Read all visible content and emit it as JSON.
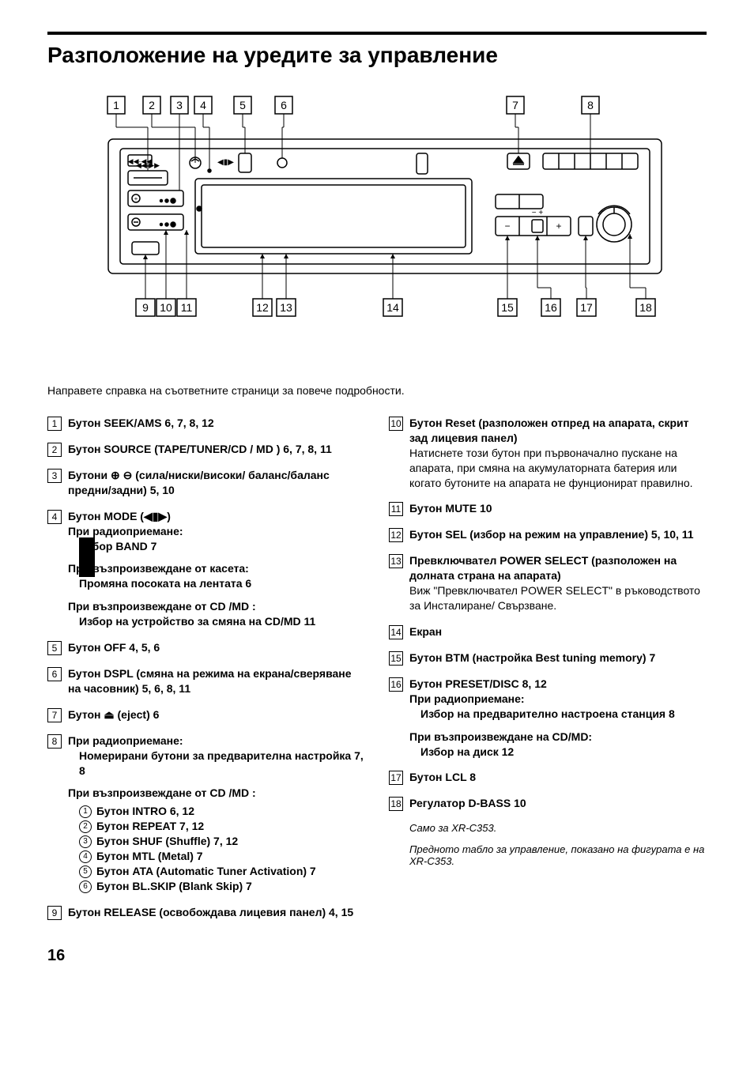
{
  "title": "Разположение на уредите за управление",
  "intro": "Направете справка на съответните страници за повече подробности.",
  "pageNumber": "16",
  "diagram": {
    "topLabels": [
      "1",
      "2",
      "3",
      "4",
      "5",
      "6",
      "7",
      "8"
    ],
    "bottomLabels": [
      "9",
      "10",
      "11",
      "12",
      "13",
      "14",
      "15",
      "16",
      "17",
      "18"
    ]
  },
  "leftItems": [
    {
      "n": "1",
      "lines": [
        {
          "main": "Бутон SEEK/AMS  6, 7, 8, 12"
        }
      ]
    },
    {
      "n": "2",
      "lines": [
        {
          "main": "Бутон SOURCE (TAPE/TUNER/CD  / MD  )  6, 7, 8, 11"
        }
      ]
    },
    {
      "n": "3",
      "lines": [
        {
          "main": "Бутони ⊕ ⊖ (сила/ниски/високи/ баланс/баланс предни/задни)  5, 10"
        }
      ]
    },
    {
      "n": "4",
      "lines": [
        {
          "main": "Бутон MODE (◀▮▶)"
        },
        {
          "main": "При радиоприемане:"
        },
        {
          "desc": "Избор BAND  7"
        },
        {
          "context": "При възпроизвеждане от касета:"
        },
        {
          "desc": "Промяна посоката на лентата  6"
        },
        {
          "context": "При възпроизвеждане от CD  /MD  :"
        },
        {
          "desc": "Избор на устройство за смяна на CD/MD  11"
        }
      ]
    },
    {
      "n": "5",
      "lines": [
        {
          "main": "Бутон OFF  4, 5, 6"
        }
      ]
    },
    {
      "n": "6",
      "lines": [
        {
          "main": "Бутон DSPL (смяна на режима на екрана/сверяване на часовник)  5, 6, 8, 11"
        }
      ]
    },
    {
      "n": "7",
      "lines": [
        {
          "main": "Бутон ⏏ (eject)  6"
        }
      ]
    },
    {
      "n": "8",
      "lines": [
        {
          "main": "При радиоприемане:"
        },
        {
          "desc": "Номерирани бутони за предварителна настройка  7, 8"
        },
        {
          "context": "При възпроизвеждане от CD  /MD  :"
        }
      ],
      "subitems": [
        {
          "c": "1",
          "t": "Бутон INTRO  6, 12"
        },
        {
          "c": "2",
          "t": "Бутон REPEAT  7, 12"
        },
        {
          "c": "3",
          "t": "Бутон SHUF (Shuffle)    7, 12"
        },
        {
          "c": "4",
          "t": "Бутон MTL (Metal)  7"
        },
        {
          "c": "5",
          "t": "Бутон ATA (Automatic Tuner Activation)  7"
        },
        {
          "c": "6",
          "t": "Бутон BL.SKIP (Blank Skip)  7"
        }
      ]
    },
    {
      "n": "9",
      "lines": [
        {
          "main": "Бутон RELEASE (освобождава лицевия панел)  4, 15"
        }
      ]
    }
  ],
  "rightItems": [
    {
      "n": "10",
      "lines": [
        {
          "main": "Бутон Reset (разположен отпред на апарата, скрит зад лицевия панел)"
        },
        {
          "sub": "Натиснете този бутон при първоначално пускане на апарата, при смяна на акумулаторната батерия или когато бутоните на апарата не фунционират правилно."
        }
      ]
    },
    {
      "n": "11",
      "lines": [
        {
          "main": "Бутон MUTE  10"
        }
      ]
    },
    {
      "n": "12",
      "lines": [
        {
          "main": "Бутон SEL (избор на режим на управление)  5, 10, 11"
        }
      ]
    },
    {
      "n": "13",
      "lines": [
        {
          "main": "Превключвател POWER SELECT (разположен на долната страна на апарата)"
        },
        {
          "sub": "Виж \"Превключвател POWER SELECT\" в ръководството за Инсталиране/ Свързване."
        }
      ]
    },
    {
      "n": "14",
      "lines": [
        {
          "main": "Екран"
        }
      ]
    },
    {
      "n": "15",
      "lines": [
        {
          "main": "Бутон BTM (настройка Best tuning memory)  7"
        }
      ]
    },
    {
      "n": "16",
      "lines": [
        {
          "main": "Бутон PRESET/DISC    8, 12"
        },
        {
          "main": "При радиоприемане:"
        },
        {
          "desc": "Избор на предварително настроена станция  8"
        },
        {
          "context": "При възпроизвеждане на CD/MD:"
        },
        {
          "desc": "Избор на диск  12"
        }
      ]
    },
    {
      "n": "17",
      "lines": [
        {
          "main": "Бутон LCL  8"
        }
      ]
    },
    {
      "n": "18",
      "lines": [
        {
          "main": "Регулатор D-BASS  10"
        }
      ]
    }
  ],
  "footnotes": [
    "Само за XR-C353.",
    "Предното табло за управление, показано на фигурата е на XR-C353."
  ]
}
